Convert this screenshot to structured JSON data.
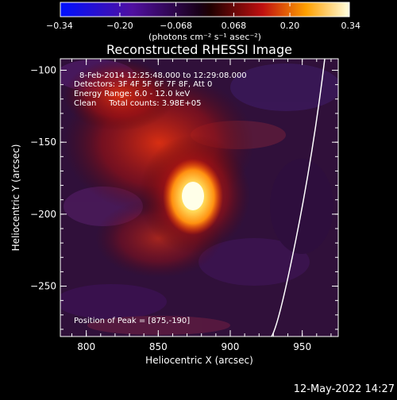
{
  "chart_data": {
    "type": "heatmap",
    "title": "Reconstructed RHESSI Image",
    "xlabel": "Heliocentric X (arcsec)",
    "ylabel": "Heliocentric Y (arcsec)",
    "xlim": [
      782,
      975
    ],
    "ylim": [
      -285,
      -92
    ],
    "xticks": [
      800,
      850,
      900,
      950
    ],
    "yticks": [
      -100,
      -150,
      -200,
      -250
    ],
    "colorbar": {
      "ticks": [
        "-0.34",
        "-0.20",
        "-0.068",
        "0.068",
        "0.20",
        "0.34"
      ],
      "tick_values": [
        -0.34,
        -0.2,
        -0.068,
        0.068,
        0.2,
        0.34
      ],
      "range": [
        -0.34,
        0.34
      ],
      "label": "(photons cm⁻² s⁻¹ asec⁻²)"
    },
    "annotations": [
      "8-Feb-2014 12:25:48.000 to 12:29:08.000",
      "Detectors: 3F 4F 5F 6F 7F 8F, Att 0",
      "Energy Range: 6.0 - 12.0 keV",
      "Clean     Total counts: 3.98E+05"
    ],
    "peak_label": "Position of Peak = [875,-190]",
    "peak": [
      875,
      -190
    ],
    "limb_color": "#ffffff"
  },
  "footer_date": "12-May-2022 14:27"
}
